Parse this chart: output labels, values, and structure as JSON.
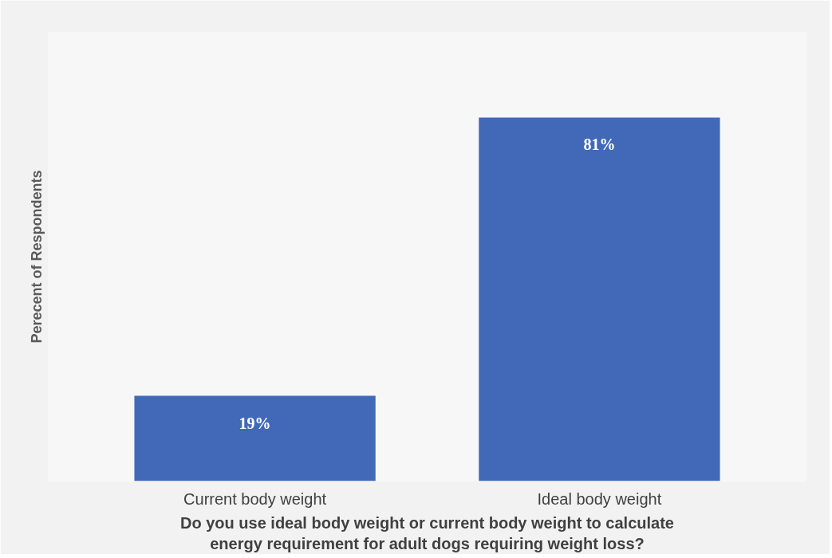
{
  "chart_data": {
    "type": "bar",
    "ylabel": "Perecent of Respondents",
    "xlabel": "Do you use ideal body weight or current body weight to calculate\nenergy requirement for adult dogs requiring weight loss?",
    "categories": [
      "Current body weight",
      "Ideal body weight"
    ],
    "values": [
      19,
      81
    ],
    "value_labels": [
      "19%",
      "81%"
    ],
    "color": "#4169b8",
    "ylim": [
      0,
      100
    ],
    "grid": false
  }
}
